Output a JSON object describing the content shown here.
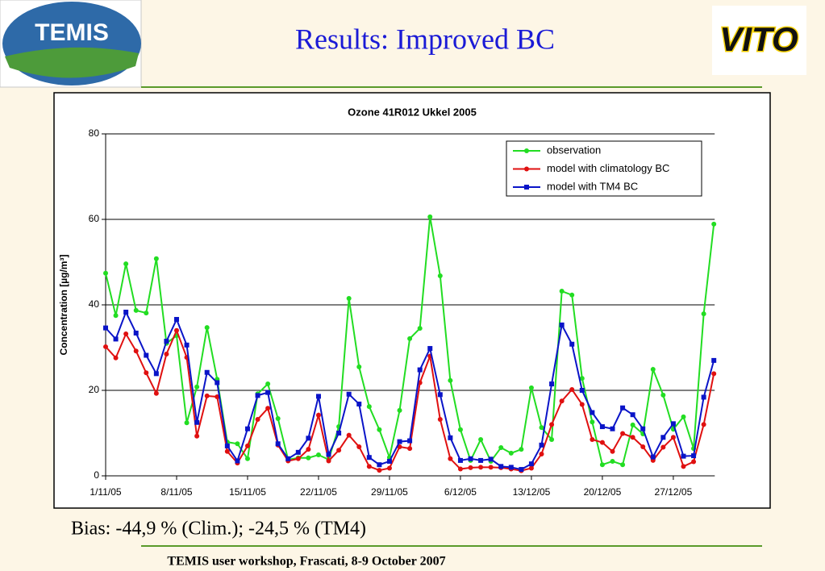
{
  "header": {
    "title": "Results: Improved BC",
    "logo_left": "TEMIS",
    "logo_right": "VITO"
  },
  "chart_data": {
    "type": "line",
    "title": "Ozone 41R012 Ukkel 2005",
    "y_label": "Concentration [µg/m³]",
    "categories": [
      "1/11/05",
      null,
      null,
      null,
      null,
      null,
      null,
      "8/11/05",
      null,
      null,
      null,
      null,
      null,
      null,
      "15/11/05",
      null,
      null,
      null,
      null,
      null,
      null,
      "22/11/05",
      null,
      null,
      null,
      null,
      null,
      null,
      "29/11/05",
      null,
      null,
      null,
      null,
      null,
      null,
      "6/12/05",
      null,
      null,
      null,
      null,
      null,
      null,
      "13/12/05",
      null,
      null,
      null,
      null,
      null,
      null,
      "20/12/05",
      null,
      null,
      null,
      null,
      null,
      null,
      "27/12/05",
      null,
      null,
      null,
      null
    ],
    "ylim": [
      0,
      80
    ],
    "yticks": [
      0,
      20,
      40,
      60,
      80
    ],
    "grid": true,
    "legend": "upper right",
    "series": [
      {
        "name": "observation",
        "color": "#22dd22",
        "marker": "circle",
        "values": [
          47.4,
          37.5,
          49.6,
          38.7,
          38.1,
          50.8,
          31,
          32.8,
          12.4,
          20.8,
          34.7,
          22.6,
          7.9,
          7.5,
          4.0,
          19.2,
          21.5,
          13.4,
          3.8,
          4.2,
          4.2,
          4.9,
          3.8,
          11.5,
          41.5,
          25.5,
          16.2,
          10.8,
          4.3,
          15.3,
          32.1,
          34.5,
          60.6,
          46.8,
          22.3,
          10.8,
          3.6,
          8.5,
          3.4,
          6.6,
          5.3,
          6.2,
          20.6,
          11.3,
          8.5,
          43.2,
          42.3,
          22.8,
          12.6,
          2.6,
          3.4,
          2.6,
          11.9,
          9.8,
          24.9,
          18.9,
          10.9,
          13.8,
          6.4,
          37.9,
          58.9
        ]
      },
      {
        "name": "model with climatology BC",
        "color": "#e01010",
        "marker": "circle",
        "values": [
          30.2,
          27.6,
          33.2,
          29.2,
          24.1,
          19.3,
          28.5,
          34.0,
          27.7,
          9.3,
          18.7,
          18.5,
          5.7,
          3.0,
          7.0,
          13.2,
          15.8,
          7.2,
          3.5,
          4.0,
          6.2,
          14.2,
          3.5,
          6.0,
          9.5,
          6.8,
          2.2,
          1.3,
          1.8,
          6.8,
          6.4,
          21.8,
          28.0,
          13.2,
          4.0,
          1.6,
          1.9,
          2.0,
          2.0,
          1.9,
          1.6,
          1.2,
          1.8,
          5.1,
          12.0,
          17.5,
          20.2,
          16.7,
          8.5,
          7.8,
          5.7,
          9.9,
          9.0,
          6.8,
          3.6,
          6.7,
          9.0,
          2.2,
          3.3,
          12.0,
          23.9
        ]
      },
      {
        "name": "model with TM4 BC",
        "color": "#0a14c8",
        "marker": "square",
        "values": [
          34.6,
          32.0,
          38.3,
          33.4,
          28.2,
          23.9,
          31.5,
          36.6,
          30.6,
          12.5,
          24.2,
          21.8,
          7.0,
          3.5,
          11.0,
          18.8,
          19.5,
          7.5,
          4.0,
          5.5,
          8.8,
          18.6,
          5.0,
          10.0,
          19.1,
          16.8,
          4.3,
          2.6,
          3.4,
          8.0,
          8.2,
          24.8,
          29.8,
          19.0,
          8.9,
          3.6,
          4.0,
          3.6,
          3.9,
          2.2,
          2.0,
          1.5,
          2.8,
          7.2,
          21.5,
          35.3,
          30.8,
          20.0,
          14.8,
          11.5,
          11.0,
          15.9,
          14.3,
          11.0,
          4.4,
          9.0,
          12.2,
          4.6,
          4.7,
          18.4,
          27.0
        ]
      }
    ]
  },
  "note": "Bias: -44,9 % (Clim.); -24,5 % (TM4)",
  "footer": "TEMIS user workshop, Frascati, 8-9 October 2007"
}
